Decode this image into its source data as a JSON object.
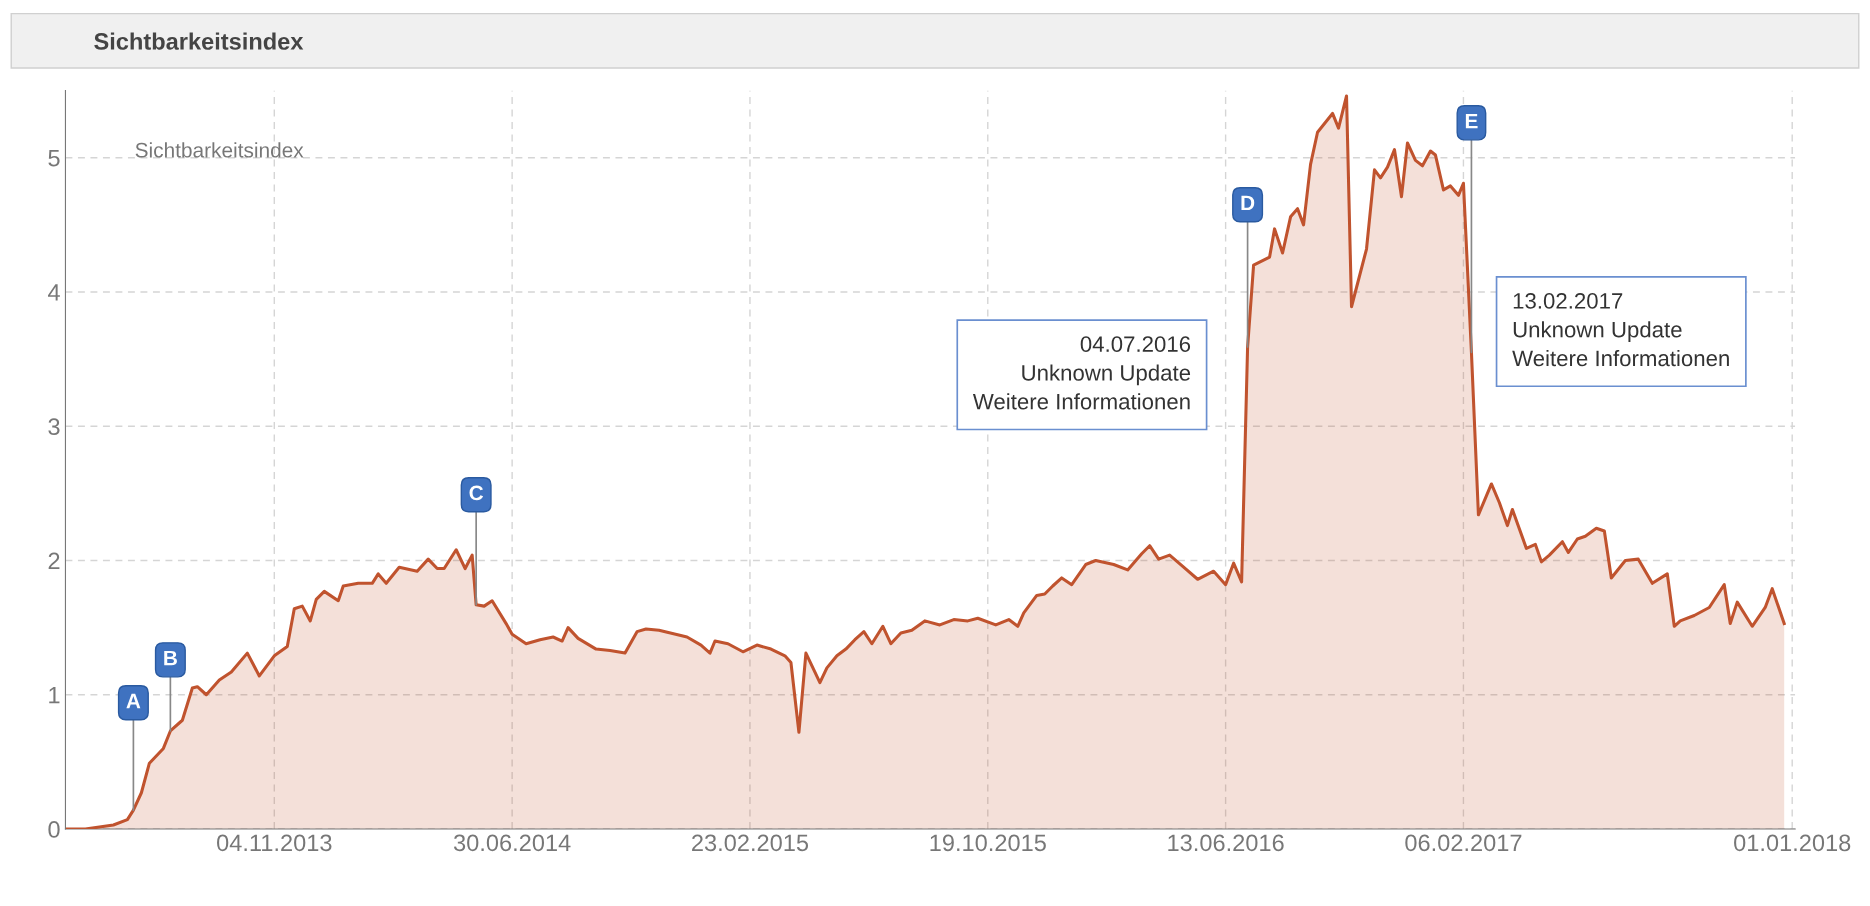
{
  "chart_data": {
    "type": "area",
    "title": "Sichtbarkeitsindex",
    "legend_title": "Sichtbarkeitsindex",
    "x": [
      "2013-04-11",
      "2013-04-29",
      "2013-05-27",
      "2013-06-10",
      "2013-06-16",
      "2013-06-24",
      "2013-07-02",
      "2013-07-16",
      "2013-07-23",
      "2013-08-04",
      "2013-08-14",
      "2013-08-19",
      "2013-08-28",
      "2013-09-10",
      "2013-09-22",
      "2013-10-08",
      "2013-10-20",
      "2013-11-04",
      "2013-11-17",
      "2013-11-24",
      "2013-12-02",
      "2013-12-10",
      "2013-12-16",
      "2013-12-24",
      "2014-01-07",
      "2014-01-12",
      "2014-01-27",
      "2014-02-10",
      "2014-02-16",
      "2014-02-24",
      "2014-03-09",
      "2014-03-27",
      "2014-04-07",
      "2014-04-16",
      "2014-04-23",
      "2014-05-05",
      "2014-05-14",
      "2014-05-21",
      "2014-05-25",
      "2014-06-02",
      "2014-06-10",
      "2014-06-24",
      "2014-06-30",
      "2014-07-14",
      "2014-07-28",
      "2014-08-10",
      "2014-08-19",
      "2014-08-25",
      "2014-09-04",
      "2014-09-22",
      "2014-10-06",
      "2014-10-21",
      "2014-11-02",
      "2014-11-11",
      "2014-11-24",
      "2014-12-22",
      "2015-01-05",
      "2015-01-14",
      "2015-01-19",
      "2015-02-01",
      "2015-02-16",
      "2015-03-02",
      "2015-03-16",
      "2015-03-30",
      "2015-04-05",
      "2015-04-13",
      "2015-04-20",
      "2015-05-04",
      "2015-05-11",
      "2015-05-21",
      "2015-05-30",
      "2015-06-08",
      "2015-06-17",
      "2015-06-25",
      "2015-07-06",
      "2015-07-14",
      "2015-07-24",
      "2015-08-04",
      "2015-08-17",
      "2015-09-01",
      "2015-09-15",
      "2015-09-29",
      "2015-10-09",
      "2015-10-27",
      "2015-11-09",
      "2015-11-18",
      "2015-11-24",
      "2015-12-07",
      "2015-12-15",
      "2015-12-23",
      "2016-01-01",
      "2016-01-11",
      "2016-01-25",
      "2016-02-04",
      "2016-02-22",
      "2016-03-07",
      "2016-03-21",
      "2016-03-29",
      "2016-04-07",
      "2016-04-18",
      "2016-05-02",
      "2016-05-16",
      "2016-06-01",
      "2016-06-13",
      "2016-06-21",
      "2016-06-29",
      "2016-07-05",
      "2016-07-11",
      "2016-07-27",
      "2016-08-01",
      "2016-08-09",
      "2016-08-17",
      "2016-08-24",
      "2016-08-30",
      "2016-09-06",
      "2016-09-13",
      "2016-09-28",
      "2016-10-04",
      "2016-10-12",
      "2016-10-17",
      "2016-11-01",
      "2016-11-09",
      "2016-11-15",
      "2016-11-22",
      "2016-11-29",
      "2016-12-06",
      "2016-12-12",
      "2016-12-20",
      "2016-12-27",
      "2017-01-04",
      "2017-01-09",
      "2017-01-17",
      "2017-01-24",
      "2017-02-01",
      "2017-02-06",
      "2017-02-14",
      "2017-02-21",
      "2017-03-06",
      "2017-03-14",
      "2017-03-22",
      "2017-03-27",
      "2017-04-10",
      "2017-04-19",
      "2017-04-25",
      "2017-05-03",
      "2017-05-16",
      "2017-05-22",
      "2017-05-31",
      "2017-06-08",
      "2017-06-19",
      "2017-06-27",
      "2017-07-04",
      "2017-07-18",
      "2017-07-31",
      "2017-08-14",
      "2017-08-29",
      "2017-09-05",
      "2017-09-11",
      "2017-09-25",
      "2017-10-10",
      "2017-10-25",
      "2017-10-31",
      "2017-11-07",
      "2017-11-22",
      "2017-12-05",
      "2017-12-12",
      "2017-12-24"
    ],
    "series": [
      {
        "color": "#c0532e",
        "values": [
          0,
          0,
          0.03,
          0.07,
          0.14,
          0.27,
          0.49,
          0.6,
          0.73,
          0.81,
          1.05,
          1.06,
          1.0,
          1.11,
          1.17,
          1.31,
          1.14,
          1.29,
          1.36,
          1.64,
          1.66,
          1.55,
          1.71,
          1.77,
          1.7,
          1.81,
          1.83,
          1.83,
          1.9,
          1.83,
          1.95,
          1.92,
          2.01,
          1.94,
          1.94,
          2.08,
          1.94,
          2.04,
          1.67,
          1.66,
          1.7,
          1.53,
          1.45,
          1.38,
          1.41,
          1.43,
          1.4,
          1.5,
          1.42,
          1.34,
          1.33,
          1.31,
          1.47,
          1.49,
          1.48,
          1.43,
          1.37,
          1.31,
          1.4,
          1.38,
          1.32,
          1.37,
          1.34,
          1.29,
          1.24,
          0.72,
          1.31,
          1.09,
          1.2,
          1.29,
          1.34,
          1.41,
          1.47,
          1.38,
          1.51,
          1.38,
          1.46,
          1.48,
          1.55,
          1.52,
          1.56,
          1.55,
          1.57,
          1.52,
          1.56,
          1.51,
          1.61,
          1.74,
          1.75,
          1.81,
          1.87,
          1.82,
          1.97,
          2.0,
          1.97,
          1.93,
          2.05,
          2.11,
          2.01,
          2.04,
          1.95,
          1.86,
          1.92,
          1.82,
          1.98,
          1.84,
          3.59,
          4.2,
          4.26,
          4.47,
          4.29,
          4.56,
          4.62,
          4.5,
          4.95,
          5.19,
          5.33,
          5.22,
          5.46,
          3.89,
          4.32,
          4.91,
          4.85,
          4.93,
          5.06,
          4.71,
          5.11,
          4.98,
          4.94,
          5.05,
          5.02,
          4.76,
          4.79,
          4.72,
          4.81,
          3.55,
          2.34,
          2.57,
          2.43,
          2.26,
          2.38,
          2.09,
          2.12,
          1.99,
          2.04,
          2.14,
          2.06,
          2.16,
          2.18,
          2.24,
          2.22,
          1.87,
          2.0,
          2.01,
          1.83,
          1.9,
          1.51,
          1.55,
          1.59,
          1.65,
          1.82,
          1.53,
          1.69,
          1.51,
          1.65,
          1.79,
          1.53
        ]
      }
    ],
    "xlim": [
      "2013-04-09",
      "2018-01-04"
    ],
    "xticks": [
      {
        "value": "2013-11-04",
        "label": "04.11.2013"
      },
      {
        "value": "2014-06-30",
        "label": "30.06.2014"
      },
      {
        "value": "2015-02-23",
        "label": "23.02.2015"
      },
      {
        "value": "2015-10-19",
        "label": "19.10.2015"
      },
      {
        "value": "2016-06-13",
        "label": "13.06.2016"
      },
      {
        "value": "2017-02-06",
        "label": "06.02.2017"
      },
      {
        "value": "2018-01-01",
        "label": "01.01.2018"
      }
    ],
    "ylim": [
      0,
      5.5
    ],
    "yticks": [
      0,
      1,
      2,
      3,
      4,
      5
    ],
    "grid": true,
    "legend": false,
    "line_style": "solid",
    "annotations": [
      {
        "text": "A",
        "x": "2013-06-16",
        "y": 0.14
      },
      {
        "text": "B",
        "x": "2013-07-23",
        "y": 0.73
      },
      {
        "text": "C",
        "x": "2014-05-25",
        "y": 1.67
      },
      {
        "text": "D",
        "x": "2016-07-05",
        "y": 3.59
      },
      {
        "text": "E",
        "x": "2017-02-14",
        "y": 3.55
      },
      {
        "text": "04.07.2016\nUnknown Update\nWeitere Informationen",
        "x": "2016-07-04",
        "y": 3.59
      },
      {
        "text": "13.02.2017\nUnknown Update\nWeitere Informationen",
        "x": "2017-02-13",
        "y": 3.55
      }
    ]
  }
}
